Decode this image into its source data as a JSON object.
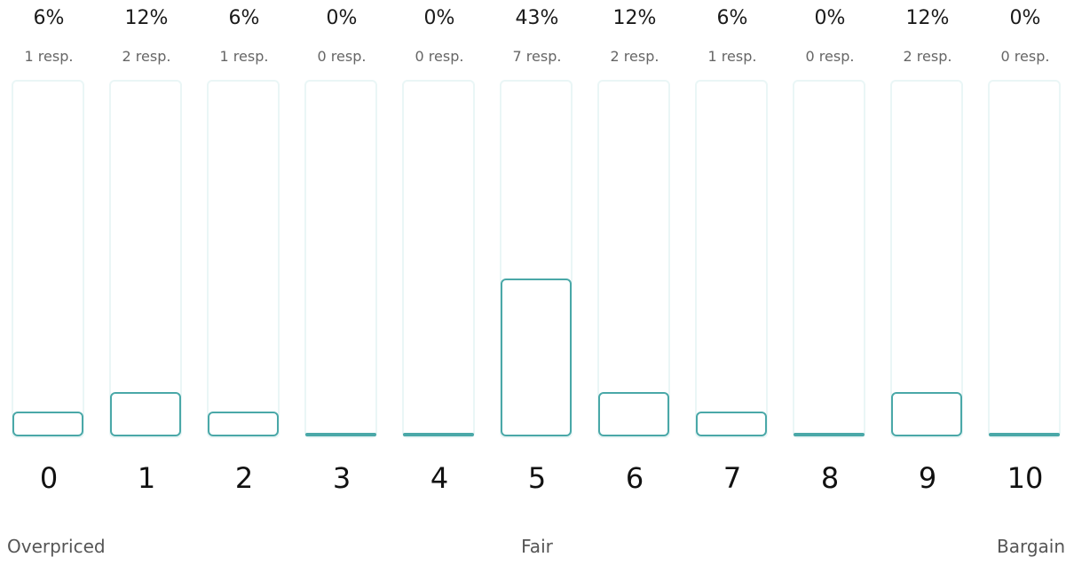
{
  "chart_data": {
    "type": "bar",
    "categories": [
      "0",
      "1",
      "2",
      "3",
      "4",
      "5",
      "6",
      "7",
      "8",
      "9",
      "10"
    ],
    "values": [
      6,
      12,
      6,
      0,
      0,
      43,
      12,
      6,
      0,
      12,
      0
    ],
    "value_labels": [
      "6%",
      "12%",
      "6%",
      "0%",
      "0%",
      "43%",
      "12%",
      "6%",
      "0%",
      "12%",
      "0%"
    ],
    "response_labels": [
      "1 resp.",
      "2 resp.",
      "1 resp.",
      "0 resp.",
      "0 resp.",
      "7 resp.",
      "2 resp.",
      "1 resp.",
      "0 resp.",
      "2 resp.",
      "0 resp."
    ],
    "ylim": [
      0,
      100
    ],
    "grid": false,
    "anchors": {
      "left": "Overpriced",
      "center": "Fair",
      "right": "Bargain"
    },
    "colors": {
      "bar": "#4aa8a8",
      "track": "#eaf6f6"
    }
  }
}
